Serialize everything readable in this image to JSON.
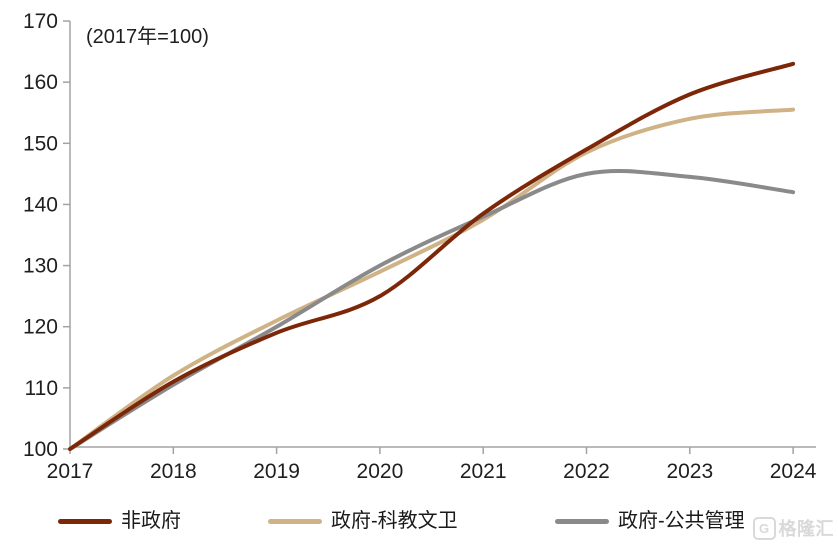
{
  "chart_data": {
    "type": "line",
    "title_annotation": "(2017年=100)",
    "x": [
      2017,
      2018,
      2019,
      2020,
      2021,
      2022,
      2023,
      2024
    ],
    "x_tick_labels": [
      "2017",
      "2018",
      "2019",
      "2020",
      "2021",
      "2022",
      "2023",
      "2024"
    ],
    "ylim": [
      100,
      170
    ],
    "y_tick_step": 10,
    "y_tick_labels": [
      "100",
      "110",
      "120",
      "130",
      "140",
      "150",
      "160",
      "170"
    ],
    "grid": false,
    "line_style": "smoothed",
    "legend_position": "bottom",
    "series": [
      {
        "name": "非政府",
        "color": "#7d2709",
        "values": [
          100,
          111,
          119,
          125,
          138.5,
          149,
          158,
          163
        ]
      },
      {
        "name": "政府-科教文卫",
        "color": "#d0b287",
        "values": [
          100,
          112,
          121,
          129,
          137.5,
          148.5,
          154,
          155.5
        ]
      },
      {
        "name": "政府-公共管理",
        "color": "#8a8a8a",
        "values": [
          100,
          110.5,
          120,
          130,
          138,
          145,
          144.5,
          142
        ]
      }
    ],
    "colors": {
      "axis": "#a3a3a3",
      "tick_label": "#1f1f1f",
      "watermark": "#d9d9d9"
    }
  },
  "watermark": {
    "logo_letter": "G",
    "text": "格隆汇"
  }
}
